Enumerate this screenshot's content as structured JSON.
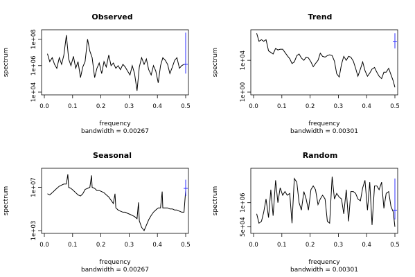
{
  "chart_data": [
    {
      "type": "line",
      "title": "Observed",
      "xlabel": "frequency",
      "sublabel": "bandwidth = 0.00267",
      "ylabel": "spectrum",
      "ylog": true,
      "xlim": [
        0.0,
        0.5
      ],
      "ylim_log10": [
        4,
        8.5
      ],
      "xticks": [
        0,
        0.1,
        0.2,
        0.3,
        0.4,
        0.5
      ],
      "xtick_labels": [
        "0.0",
        "0.1",
        "0.2",
        "0.3",
        "0.4",
        "0.5"
      ],
      "yticks_log10": [
        4,
        6,
        8
      ],
      "ytick_labels": [
        "1e+04",
        "1e+06",
        "1e+08"
      ],
      "x": [
        0.011,
        0.019,
        0.028,
        0.036,
        0.044,
        0.053,
        0.061,
        0.069,
        0.078,
        0.086,
        0.094,
        0.103,
        0.111,
        0.119,
        0.128,
        0.136,
        0.144,
        0.153,
        0.161,
        0.169,
        0.178,
        0.186,
        0.194,
        0.203,
        0.211,
        0.219,
        0.228,
        0.236,
        0.244,
        0.253,
        0.261,
        0.269,
        0.278,
        0.286,
        0.294,
        0.303,
        0.311,
        0.319,
        0.328,
        0.336,
        0.344,
        0.353,
        0.361,
        0.369,
        0.378,
        0.386,
        0.394,
        0.403,
        0.411,
        0.419,
        0.428,
        0.436,
        0.444,
        0.453,
        0.461,
        0.469,
        0.478,
        0.486,
        0.494,
        0.5
      ],
      "y_log10": [
        6.9,
        6.3,
        6.6,
        6.1,
        5.8,
        6.6,
        6.1,
        6.8,
        8.3,
        6.5,
        6.0,
        6.7,
        5.8,
        6.3,
        5.1,
        5.9,
        6.3,
        8.0,
        7.1,
        6.6,
        5.1,
        5.8,
        6.2,
        5.4,
        6.3,
        5.9,
        6.8,
        6.0,
        6.2,
        5.8,
        6.0,
        5.7,
        6.1,
        5.9,
        5.6,
        5.3,
        6.0,
        5.4,
        4.1,
        5.9,
        6.6,
        6.1,
        6.5,
        5.7,
        5.3,
        6.0,
        5.6,
        4.7,
        6.0,
        6.6,
        6.4,
        6.1,
        5.4,
        5.9,
        6.4,
        6.6,
        5.8,
        6.0,
        6.1,
        6.1
      ],
      "ci_x": 0.5,
      "ci_log10": [
        5.4,
        8.5
      ],
      "ci_mid_log10": 6.1
    },
    {
      "type": "line",
      "title": "Trend",
      "xlabel": "frequency",
      "sublabel": "bandwidth = 0.00301",
      "ylabel": "spectrum",
      "ylog": true,
      "xlim": [
        0.0,
        0.5
      ],
      "ylim_log10": [
        0,
        7.5
      ],
      "xticks": [
        0,
        0.1,
        0.2,
        0.3,
        0.4,
        0.5
      ],
      "xtick_labels": [
        "0.0",
        "0.1",
        "0.2",
        "0.3",
        "0.4",
        "0.5"
      ],
      "yticks_log10": [
        0,
        4
      ],
      "ytick_labels": [
        "1e+00",
        "1e+04"
      ],
      "x": [
        0.011,
        0.019,
        0.028,
        0.036,
        0.044,
        0.053,
        0.061,
        0.069,
        0.078,
        0.086,
        0.094,
        0.103,
        0.111,
        0.119,
        0.128,
        0.136,
        0.144,
        0.153,
        0.161,
        0.169,
        0.178,
        0.186,
        0.194,
        0.203,
        0.211,
        0.219,
        0.228,
        0.236,
        0.244,
        0.253,
        0.261,
        0.269,
        0.278,
        0.286,
        0.294,
        0.303,
        0.311,
        0.319,
        0.328,
        0.336,
        0.344,
        0.353,
        0.361,
        0.369,
        0.378,
        0.386,
        0.394,
        0.403,
        0.411,
        0.419,
        0.428,
        0.436,
        0.444,
        0.453,
        0.461,
        0.469,
        0.478,
        0.486,
        0.494,
        0.5
      ],
      "y_log10": [
        7.4,
        6.4,
        6.6,
        6.4,
        6.6,
        5.2,
        5.0,
        4.8,
        5.5,
        5.3,
        5.4,
        5.4,
        5.0,
        4.6,
        4.2,
        3.6,
        3.8,
        4.6,
        4.8,
        4.3,
        4.0,
        4.4,
        4.3,
        3.8,
        3.2,
        3.6,
        4.0,
        4.9,
        4.5,
        4.4,
        4.6,
        4.7,
        4.6,
        3.9,
        2.3,
        1.9,
        3.5,
        4.5,
        4.0,
        4.5,
        4.4,
        3.9,
        3.0,
        2.0,
        2.9,
        3.8,
        2.7,
        2.0,
        2.4,
        2.9,
        3.1,
        2.5,
        2.0,
        1.7,
        2.5,
        2.5,
        3.0,
        2.2,
        1.4,
        0.6
      ],
      "ci_x": 0.5,
      "ci_log10": [
        5.5,
        7.4
      ],
      "ci_mid_log10": 6.4
    },
    {
      "type": "line",
      "title": "Seasonal",
      "xlabel": "frequency",
      "sublabel": "bandwidth = 0.00267",
      "ylabel": "spectrum",
      "ylog": true,
      "xlim": [
        0.0,
        0.5
      ],
      "ylim_log10": [
        3,
        8.5
      ],
      "xticks": [
        0,
        0.1,
        0.2,
        0.3,
        0.4,
        0.5
      ],
      "xtick_labels": [
        "0.0",
        "0.1",
        "0.2",
        "0.3",
        "0.4",
        "0.5"
      ],
      "yticks_log10": [
        3,
        7
      ],
      "ytick_labels": [
        "1e+03",
        "1e+07"
      ],
      "x": [
        0.011,
        0.019,
        0.028,
        0.036,
        0.044,
        0.053,
        0.061,
        0.069,
        0.078,
        0.083,
        0.086,
        0.094,
        0.103,
        0.111,
        0.119,
        0.128,
        0.136,
        0.144,
        0.153,
        0.161,
        0.167,
        0.169,
        0.178,
        0.186,
        0.194,
        0.203,
        0.211,
        0.219,
        0.228,
        0.236,
        0.244,
        0.25,
        0.253,
        0.261,
        0.269,
        0.278,
        0.286,
        0.294,
        0.303,
        0.311,
        0.319,
        0.328,
        0.333,
        0.336,
        0.344,
        0.353,
        0.361,
        0.369,
        0.378,
        0.386,
        0.394,
        0.403,
        0.411,
        0.417,
        0.419,
        0.428,
        0.436,
        0.444,
        0.453,
        0.461,
        0.469,
        0.478,
        0.486,
        0.494,
        0.5
      ],
      "y_log10": [
        6.4,
        6.3,
        6.5,
        6.7,
        6.9,
        7.1,
        7.2,
        7.3,
        7.3,
        8.2,
        7.0,
        6.9,
        6.7,
        6.5,
        6.3,
        6.2,
        6.4,
        6.8,
        6.9,
        7.0,
        8.1,
        7.0,
        6.9,
        6.7,
        6.7,
        6.6,
        6.5,
        6.3,
        6.1,
        5.8,
        5.5,
        6.4,
        5.1,
        4.9,
        4.8,
        4.7,
        4.7,
        4.6,
        4.5,
        4.4,
        4.3,
        4.1,
        5.6,
        3.9,
        3.3,
        3.0,
        3.5,
        4.0,
        4.4,
        4.7,
        4.9,
        5.1,
        5.1,
        6.6,
        5.1,
        5.1,
        5.1,
        5.0,
        5.0,
        4.9,
        4.9,
        4.8,
        4.7,
        4.7,
        6.7
      ],
      "ci_x": 0.5,
      "ci_log10": [
        6.2,
        7.7
      ],
      "ci_mid_log10": 6.9
    },
    {
      "type": "line",
      "title": "Random",
      "xlabel": "frequency",
      "sublabel": "bandwidth = 0.00301",
      "ylabel": "spectrum",
      "ylog": true,
      "xlim": [
        0.0,
        0.5
      ],
      "ylim_log10": [
        4.5,
        7.7
      ],
      "xticks": [
        0,
        0.1,
        0.2,
        0.3,
        0.4,
        0.5
      ],
      "xtick_labels": [
        "0.0",
        "0.1",
        "0.2",
        "0.3",
        "0.4",
        "0.5"
      ],
      "yticks_log10": [
        4.69897,
        6
      ],
      "ytick_labels": [
        "5e+04",
        "1e+06"
      ],
      "x": [
        0.011,
        0.019,
        0.028,
        0.036,
        0.044,
        0.053,
        0.061,
        0.069,
        0.078,
        0.086,
        0.094,
        0.103,
        0.111,
        0.119,
        0.128,
        0.136,
        0.144,
        0.153,
        0.161,
        0.169,
        0.178,
        0.186,
        0.194,
        0.203,
        0.211,
        0.219,
        0.228,
        0.236,
        0.244,
        0.253,
        0.261,
        0.269,
        0.278,
        0.286,
        0.294,
        0.303,
        0.311,
        0.319,
        0.328,
        0.336,
        0.344,
        0.353,
        0.361,
        0.369,
        0.378,
        0.386,
        0.394,
        0.403,
        0.411,
        0.419,
        0.428,
        0.436,
        0.444,
        0.453,
        0.461,
        0.469,
        0.478,
        0.486,
        0.494,
        0.5
      ],
      "y_log10": [
        5.4,
        4.9,
        5.0,
        5.5,
        6.2,
        5.2,
        6.7,
        5.3,
        7.2,
        6.0,
        6.8,
        6.4,
        6.6,
        6.4,
        6.5,
        4.9,
        7.3,
        7.1,
        6.0,
        5.6,
        6.6,
        6.2,
        5.6,
        6.7,
        6.9,
        6.7,
        5.9,
        6.2,
        6.4,
        6.2,
        5.0,
        4.9,
        7.4,
        6.2,
        6.5,
        6.3,
        6.2,
        5.4,
        6.7,
        5.0,
        6.6,
        6.6,
        6.5,
        6.2,
        6.1,
        6.8,
        7.2,
        5.6,
        7.1,
        4.8,
        6.9,
        6.9,
        6.7,
        7.1,
        5.7,
        6.5,
        6.6,
        5.8,
        5.5,
        4.7
      ],
      "ci_x": 0.5,
      "ci_log10": [
        5.1,
        7.3
      ],
      "ci_mid_log10": 5.6
    }
  ],
  "colors": {
    "series": "#000000",
    "interval": "#2c2cff",
    "background": "#ffffff"
  }
}
